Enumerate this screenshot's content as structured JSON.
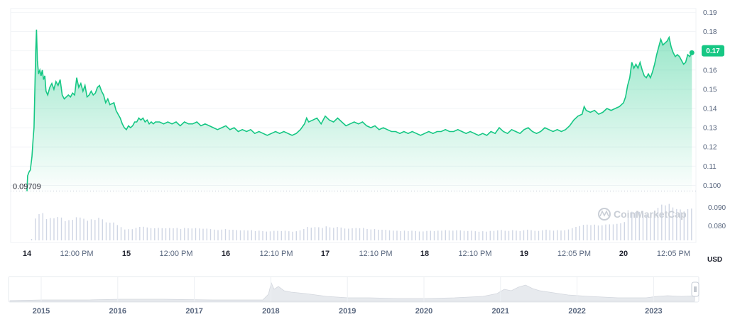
{
  "chart_data": {
    "type": "area",
    "title": "",
    "xlabel": "",
    "ylabel": "",
    "currency": "USD",
    "ylim": [
      0.095,
      0.192
    ],
    "y_ticks": [
      "0.19",
      "0.18",
      "0.17",
      "0.16",
      "0.15",
      "0.14",
      "0.13",
      "0.12",
      "0.11",
      "0.100"
    ],
    "start_value_label": "0.09709",
    "current_price_label": "0.17",
    "x_range_hours": [
      0,
      162
    ],
    "x_ticks": [
      {
        "hour": 0,
        "label": "14",
        "bold": true
      },
      {
        "hour": 12,
        "label": "12:00 PM",
        "bold": false
      },
      {
        "hour": 24,
        "label": "15",
        "bold": true
      },
      {
        "hour": 36,
        "label": "12:00 PM",
        "bold": false
      },
      {
        "hour": 48,
        "label": "16",
        "bold": true
      },
      {
        "hour": 60.17,
        "label": "12:10 PM",
        "bold": false
      },
      {
        "hour": 72,
        "label": "17",
        "bold": true
      },
      {
        "hour": 84.17,
        "label": "12:10 PM",
        "bold": false
      },
      {
        "hour": 96,
        "label": "18",
        "bold": true
      },
      {
        "hour": 108.17,
        "label": "12:10 PM",
        "bold": false
      },
      {
        "hour": 120,
        "label": "19",
        "bold": true
      },
      {
        "hour": 132.08,
        "label": "12:05 PM",
        "bold": false
      },
      {
        "hour": 144,
        "label": "20",
        "bold": true
      },
      {
        "hour": 156.08,
        "label": "12:05 PM",
        "bold": false
      }
    ],
    "series": [
      {
        "values": [
          [
            0,
            0.097
          ],
          [
            0.15,
            0.105
          ],
          [
            0.5,
            0.107
          ],
          [
            0.8,
            0.108
          ],
          [
            1.2,
            0.115
          ],
          [
            1.5,
            0.125
          ],
          [
            1.7,
            0.13
          ],
          [
            1.9,
            0.15
          ],
          [
            2.1,
            0.17
          ],
          [
            2.3,
            0.181
          ],
          [
            2.5,
            0.165
          ],
          [
            2.8,
            0.158
          ],
          [
            3.1,
            0.16
          ],
          [
            3.4,
            0.157
          ],
          [
            3.7,
            0.16
          ],
          [
            4,
            0.155
          ],
          [
            4.3,
            0.157
          ],
          [
            4.6,
            0.149
          ],
          [
            5,
            0.147
          ],
          [
            5.5,
            0.151
          ],
          [
            6,
            0.153
          ],
          [
            6.5,
            0.15
          ],
          [
            7,
            0.154
          ],
          [
            7.5,
            0.152
          ],
          [
            8,
            0.155
          ],
          [
            8.5,
            0.147
          ],
          [
            9,
            0.145
          ],
          [
            9.5,
            0.146
          ],
          [
            10,
            0.147
          ],
          [
            10.5,
            0.146
          ],
          [
            11,
            0.148
          ],
          [
            11.5,
            0.147
          ],
          [
            12,
            0.156
          ],
          [
            12.5,
            0.151
          ],
          [
            13,
            0.153
          ],
          [
            13.5,
            0.149
          ],
          [
            14,
            0.152
          ],
          [
            14.5,
            0.146
          ],
          [
            15,
            0.147
          ],
          [
            15.5,
            0.149
          ],
          [
            16,
            0.147
          ],
          [
            16.5,
            0.148
          ],
          [
            17,
            0.151
          ],
          [
            17.5,
            0.152
          ],
          [
            18,
            0.149
          ],
          [
            18.5,
            0.147
          ],
          [
            19,
            0.143
          ],
          [
            19.5,
            0.145
          ],
          [
            20,
            0.142
          ],
          [
            21,
            0.143
          ],
          [
            21.5,
            0.139
          ],
          [
            22,
            0.137
          ],
          [
            22.5,
            0.135
          ],
          [
            23,
            0.132
          ],
          [
            23.5,
            0.13
          ],
          [
            24,
            0.129
          ],
          [
            24.5,
            0.131
          ],
          [
            25,
            0.13
          ],
          [
            25.5,
            0.131
          ],
          [
            26,
            0.133
          ],
          [
            26.5,
            0.133
          ],
          [
            27,
            0.135
          ],
          [
            27.5,
            0.134
          ],
          [
            28,
            0.135
          ],
          [
            28.5,
            0.133
          ],
          [
            29,
            0.134
          ],
          [
            29.5,
            0.132
          ],
          [
            30,
            0.133
          ],
          [
            30.5,
            0.132
          ],
          [
            31,
            0.133
          ],
          [
            32,
            0.133
          ],
          [
            33,
            0.132
          ],
          [
            34,
            0.133
          ],
          [
            35,
            0.132
          ],
          [
            36,
            0.133
          ],
          [
            37,
            0.131
          ],
          [
            38,
            0.133
          ],
          [
            39,
            0.132
          ],
          [
            40,
            0.132
          ],
          [
            41,
            0.133
          ],
          [
            42,
            0.131
          ],
          [
            43,
            0.132
          ],
          [
            44,
            0.131
          ],
          [
            45,
            0.13
          ],
          [
            46,
            0.129
          ],
          [
            47,
            0.13
          ],
          [
            48,
            0.131
          ],
          [
            49,
            0.129
          ],
          [
            50,
            0.13
          ],
          [
            51,
            0.128
          ],
          [
            52,
            0.129
          ],
          [
            53,
            0.128
          ],
          [
            54,
            0.129
          ],
          [
            55,
            0.127
          ],
          [
            56,
            0.128
          ],
          [
            57,
            0.127
          ],
          [
            58,
            0.126
          ],
          [
            59,
            0.127
          ],
          [
            60,
            0.128
          ],
          [
            61,
            0.127
          ],
          [
            62,
            0.128
          ],
          [
            63,
            0.127
          ],
          [
            64,
            0.126
          ],
          [
            65,
            0.127
          ],
          [
            66,
            0.129
          ],
          [
            67,
            0.132
          ],
          [
            67.5,
            0.135
          ],
          [
            68,
            0.133
          ],
          [
            69,
            0.134
          ],
          [
            70,
            0.135
          ],
          [
            71,
            0.132
          ],
          [
            72,
            0.136
          ],
          [
            73,
            0.134
          ],
          [
            74,
            0.133
          ],
          [
            75,
            0.135
          ],
          [
            76,
            0.133
          ],
          [
            77,
            0.131
          ],
          [
            78,
            0.132
          ],
          [
            79,
            0.133
          ],
          [
            80,
            0.132
          ],
          [
            81,
            0.133
          ],
          [
            82,
            0.131
          ],
          [
            83,
            0.13
          ],
          [
            84,
            0.131
          ],
          [
            85,
            0.129
          ],
          [
            86,
            0.13
          ],
          [
            87,
            0.129
          ],
          [
            88,
            0.128
          ],
          [
            89,
            0.128
          ],
          [
            90,
            0.127
          ],
          [
            91,
            0.128
          ],
          [
            92,
            0.127
          ],
          [
            93,
            0.128
          ],
          [
            94,
            0.127
          ],
          [
            95,
            0.126
          ],
          [
            96,
            0.127
          ],
          [
            97,
            0.128
          ],
          [
            98,
            0.127
          ],
          [
            99,
            0.128
          ],
          [
            100,
            0.128
          ],
          [
            101,
            0.129
          ],
          [
            102,
            0.128
          ],
          [
            103,
            0.128
          ],
          [
            104,
            0.129
          ],
          [
            105,
            0.128
          ],
          [
            106,
            0.127
          ],
          [
            107,
            0.128
          ],
          [
            108,
            0.127
          ],
          [
            109,
            0.126
          ],
          [
            110,
            0.127
          ],
          [
            111,
            0.126
          ],
          [
            112,
            0.128
          ],
          [
            113,
            0.127
          ],
          [
            114,
            0.13
          ],
          [
            115,
            0.128
          ],
          [
            116,
            0.127
          ],
          [
            117,
            0.129
          ],
          [
            118,
            0.128
          ],
          [
            119,
            0.127
          ],
          [
            120,
            0.129
          ],
          [
            121,
            0.13
          ],
          [
            122,
            0.128
          ],
          [
            123,
            0.127
          ],
          [
            124,
            0.128
          ],
          [
            125,
            0.13
          ],
          [
            126,
            0.129
          ],
          [
            127,
            0.128
          ],
          [
            128,
            0.129
          ],
          [
            129,
            0.128
          ],
          [
            130,
            0.129
          ],
          [
            131,
            0.131
          ],
          [
            132,
            0.134
          ],
          [
            133,
            0.136
          ],
          [
            134,
            0.137
          ],
          [
            134.5,
            0.141
          ],
          [
            135,
            0.139
          ],
          [
            136,
            0.138
          ],
          [
            137,
            0.139
          ],
          [
            138,
            0.137
          ],
          [
            139,
            0.138
          ],
          [
            140,
            0.14
          ],
          [
            141,
            0.139
          ],
          [
            142,
            0.14
          ],
          [
            143,
            0.141
          ],
          [
            144,
            0.143
          ],
          [
            144.5,
            0.146
          ],
          [
            145,
            0.152
          ],
          [
            145.5,
            0.156
          ],
          [
            146,
            0.164
          ],
          [
            146.5,
            0.161
          ],
          [
            147,
            0.163
          ],
          [
            147.5,
            0.161
          ],
          [
            148,
            0.164
          ],
          [
            148.5,
            0.16
          ],
          [
            149,
            0.157
          ],
          [
            149.5,
            0.156
          ],
          [
            150,
            0.158
          ],
          [
            150.5,
            0.156
          ],
          [
            151,
            0.159
          ],
          [
            151.5,
            0.163
          ],
          [
            152,
            0.168
          ],
          [
            152.5,
            0.172
          ],
          [
            153,
            0.176
          ],
          [
            153.5,
            0.173
          ],
          [
            154,
            0.174
          ],
          [
            154.5,
            0.175
          ],
          [
            155,
            0.177
          ],
          [
            155.5,
            0.172
          ],
          [
            156,
            0.169
          ],
          [
            156.5,
            0.167
          ],
          [
            157,
            0.168
          ],
          [
            157.5,
            0.167
          ],
          [
            158,
            0.165
          ],
          [
            158.5,
            0.163
          ],
          [
            159,
            0.164
          ],
          [
            159.5,
            0.168
          ],
          [
            160,
            0.167
          ],
          [
            160.5,
            0.169
          ]
        ]
      }
    ],
    "volume_ticks": [
      "0.090",
      "0.080"
    ],
    "navigator": {
      "year_labels": [
        "2015",
        "2016",
        "2017",
        "2018",
        "2019",
        "2020",
        "2021",
        "2022",
        "2023"
      ]
    }
  },
  "watermark": "CoinMarketCap"
}
